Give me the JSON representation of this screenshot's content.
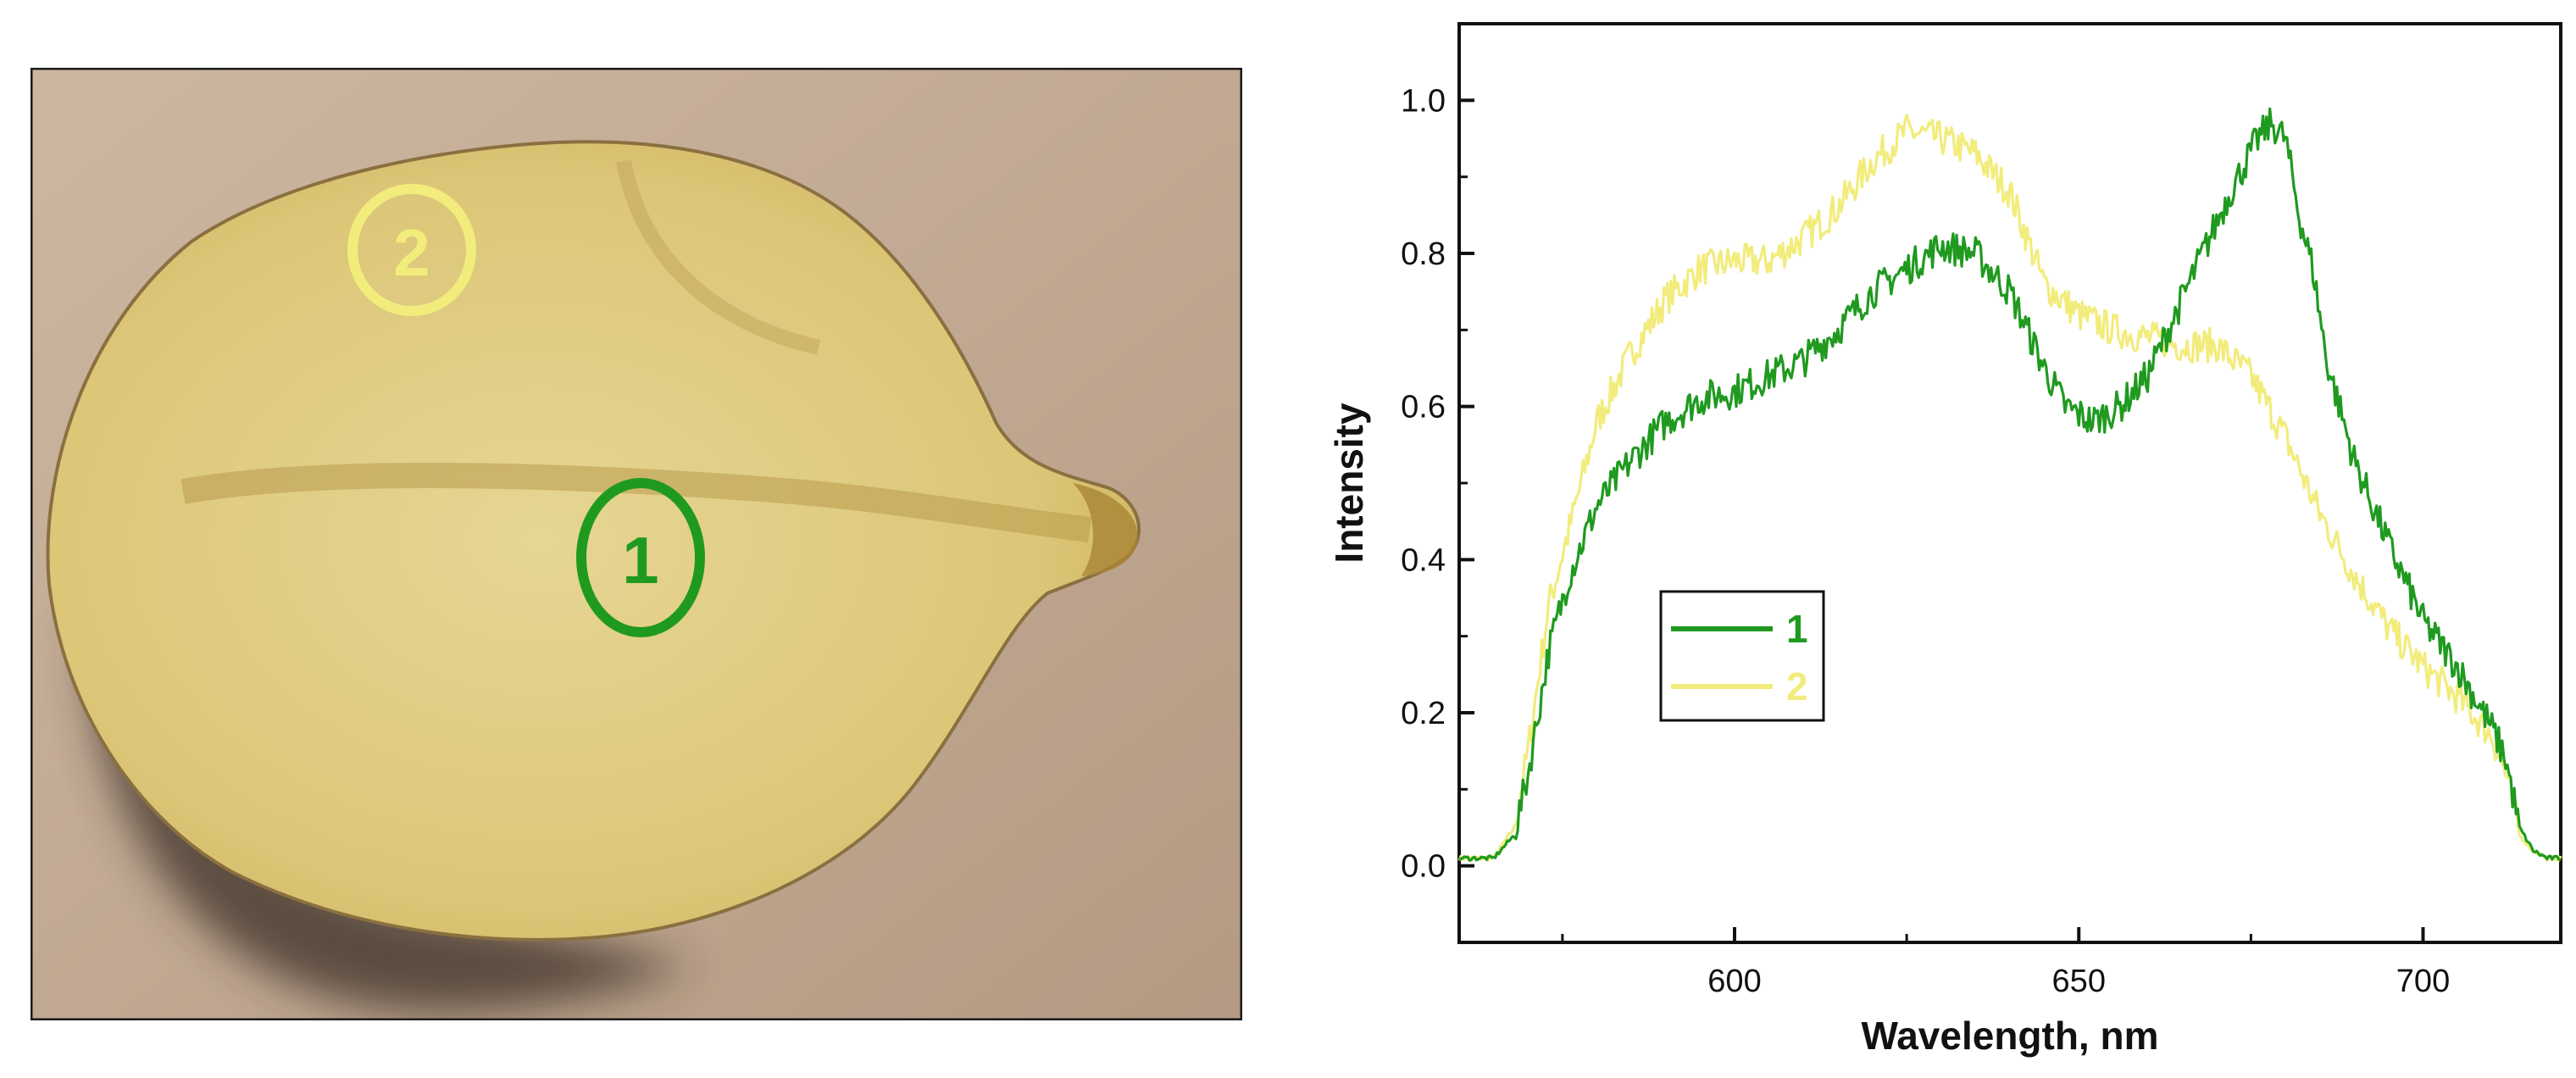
{
  "photo": {
    "markers": [
      {
        "label": "2",
        "color": "#f2ec7c"
      },
      {
        "label": "1",
        "color": "#1f9a1f"
      }
    ]
  },
  "chart_data": {
    "type": "line",
    "xlabel": "Wavelength, nm",
    "ylabel": "Intensity",
    "xlim": [
      560,
      720
    ],
    "ylim": [
      -0.1,
      1.1
    ],
    "xticks": [
      600,
      650,
      700
    ],
    "yticks": [
      0.0,
      0.2,
      0.4,
      0.6,
      0.8,
      1.0
    ],
    "ytick_labels": [
      "0.0",
      "0.2",
      "0.4",
      "0.6",
      "0.8",
      "1.0"
    ],
    "grid": false,
    "legend": "center-left",
    "series": [
      {
        "name": "1",
        "color": "#1f9a1f",
        "x": [
          560,
          565,
          568,
          570,
          573,
          576,
          580,
          585,
          590,
          595,
          600,
          605,
          610,
          615,
          620,
          625,
          630,
          635,
          640,
          645,
          648,
          652,
          656,
          660,
          664,
          668,
          672,
          676,
          678,
          680,
          682,
          684,
          686,
          690,
          695,
          700,
          705,
          710,
          712,
          714,
          716,
          718,
          720
        ],
        "y": [
          0.01,
          0.01,
          0.04,
          0.12,
          0.28,
          0.38,
          0.47,
          0.53,
          0.58,
          0.61,
          0.62,
          0.64,
          0.66,
          0.7,
          0.75,
          0.78,
          0.81,
          0.8,
          0.75,
          0.65,
          0.6,
          0.58,
          0.6,
          0.64,
          0.72,
          0.8,
          0.88,
          0.95,
          0.97,
          0.95,
          0.85,
          0.78,
          0.66,
          0.53,
          0.42,
          0.32,
          0.26,
          0.18,
          0.14,
          0.05,
          0.02,
          0.01,
          0.01
        ]
      },
      {
        "name": "2",
        "color": "#f2ec7c",
        "x": [
          560,
          565,
          568,
          570,
          573,
          576,
          580,
          585,
          590,
          595,
          600,
          605,
          610,
          615,
          620,
          625,
          630,
          635,
          640,
          645,
          650,
          655,
          660,
          665,
          670,
          675,
          680,
          685,
          690,
          695,
          700,
          705,
          710,
          712,
          714,
          716,
          718,
          720
        ],
        "y": [
          0.01,
          0.01,
          0.05,
          0.15,
          0.34,
          0.44,
          0.58,
          0.67,
          0.74,
          0.78,
          0.79,
          0.79,
          0.82,
          0.86,
          0.92,
          0.96,
          0.95,
          0.93,
          0.88,
          0.76,
          0.72,
          0.7,
          0.69,
          0.68,
          0.68,
          0.64,
          0.56,
          0.46,
          0.38,
          0.31,
          0.26,
          0.22,
          0.17,
          0.12,
          0.04,
          0.02,
          0.01,
          0.01
        ]
      }
    ]
  }
}
